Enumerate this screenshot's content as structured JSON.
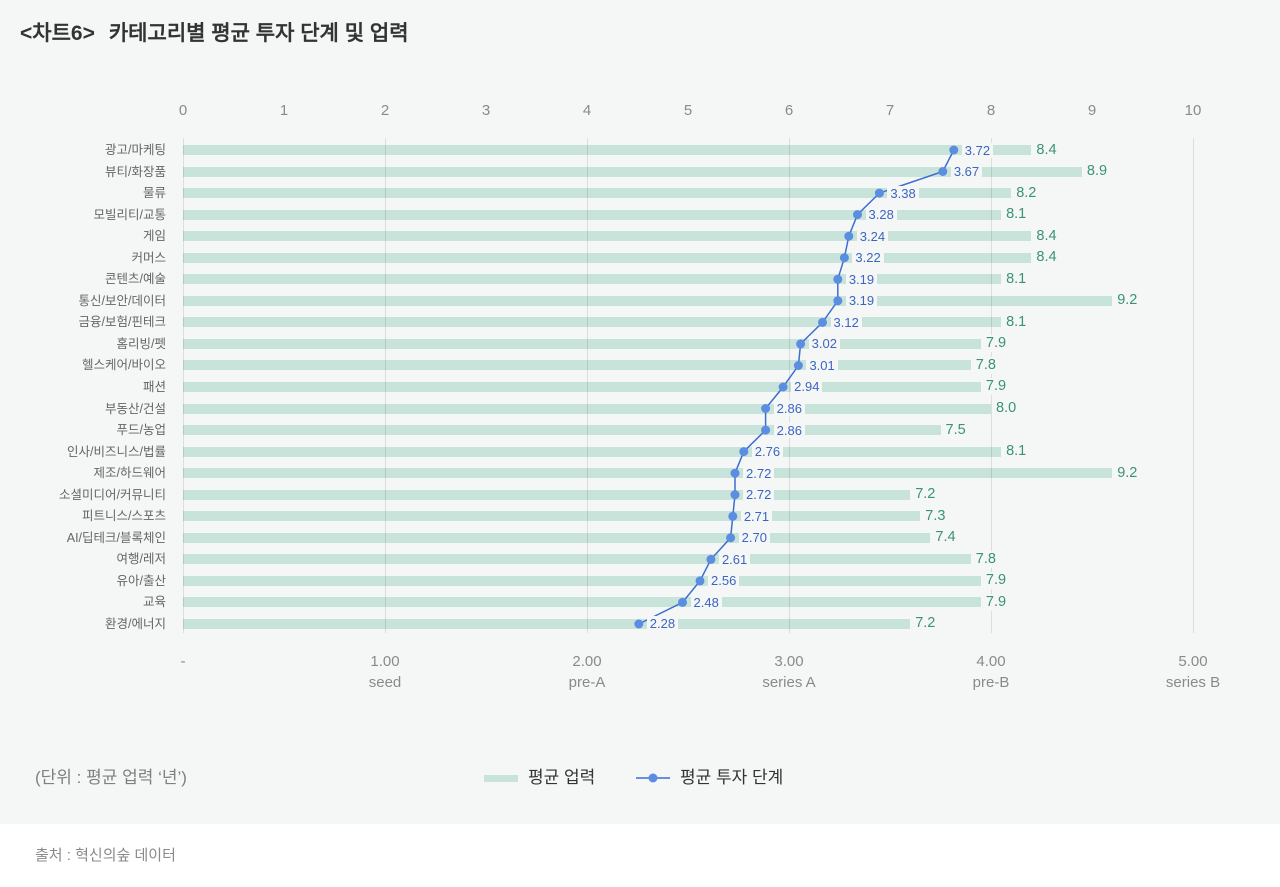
{
  "title": {
    "chart_no": "<차트6>",
    "text": "카테고리별 평균 투자 단계 및 업력"
  },
  "unit_note": "(단위 : 평균 업력 ‘년’)",
  "legend": [
    {
      "label": "평균 업력",
      "type": "bar",
      "color": "#c8e3da"
    },
    {
      "label": "평균 투자 단계",
      "type": "line",
      "color": "#5b8ee0"
    }
  ],
  "source": "출처 : 혁신의숲 데이터",
  "colors": {
    "bar": "#c8e3da",
    "line": "#3b6fd0",
    "dot": "#5b8ee0",
    "stage_label": "#3b66c0",
    "years_label": "#3a9473",
    "background": "#f5f6f6"
  },
  "chart_data": {
    "type": "bar",
    "orientation": "horizontal",
    "title": "카테고리별 평균 투자 단계 및 업력",
    "xlabel": "",
    "ylabel": "",
    "categories": [
      "광고/마케팅",
      "뷰티/화장품",
      "물류",
      "모빌리티/교통",
      "게임",
      "커머스",
      "콘텐츠/예술",
      "통신/보안/데이터",
      "금융/보험/핀테크",
      "홈리빙/펫",
      "헬스케어/바이오",
      "패션",
      "부동산/건설",
      "푸드/농업",
      "인사/비즈니스/법률",
      "제조/하드웨어",
      "소셜미디어/커뮤니티",
      "피트니스/스포츠",
      "AI/딥테크/블록체인",
      "여행/레저",
      "유아/출산",
      "교육",
      "환경/에너지"
    ],
    "series": [
      {
        "name": "평균 업력",
        "type": "bar",
        "axis": "top",
        "values": [
          8.4,
          8.9,
          8.2,
          8.1,
          8.4,
          8.4,
          8.1,
          9.2,
          8.1,
          7.9,
          7.8,
          7.9,
          8.0,
          7.5,
          8.1,
          9.2,
          7.2,
          7.3,
          7.4,
          7.8,
          7.9,
          7.9,
          7.2
        ],
        "value_labels": [
          "8.4",
          "8.9",
          "8.2",
          "8.1",
          "8.4",
          "8.4",
          "8.1",
          "9.2",
          "8.1",
          "7.9",
          "7.8",
          "7.9",
          "8.0",
          "7.5",
          "8.1",
          "9.2",
          "7.2",
          "7.3",
          "7.4",
          "7.8",
          "7.9",
          "7.9",
          "7.2"
        ]
      },
      {
        "name": "평균 투자 단계",
        "type": "line",
        "axis": "bottom",
        "values": [
          3.72,
          3.67,
          3.38,
          3.28,
          3.24,
          3.22,
          3.19,
          3.19,
          3.12,
          3.02,
          3.01,
          2.94,
          2.86,
          2.86,
          2.76,
          2.72,
          2.72,
          2.71,
          2.7,
          2.61,
          2.56,
          2.48,
          2.28
        ],
        "value_labels": [
          "3.72",
          "3.67",
          "3.38",
          "3.28",
          "3.24",
          "3.22",
          "3.19",
          "3.19",
          "3.12",
          "3.02",
          "3.01",
          "2.94",
          "2.86",
          "2.86",
          "2.76",
          "2.72",
          "2.72",
          "2.71",
          "2.70",
          "2.61",
          "2.56",
          "2.48",
          "2.28"
        ]
      }
    ],
    "top_axis": {
      "range": [
        0,
        10
      ],
      "ticks": [
        "0",
        "1",
        "2",
        "3",
        "4",
        "5",
        "6",
        "7",
        "8",
        "9",
        "10"
      ]
    },
    "bottom_axis": {
      "range": [
        0,
        5
      ],
      "ticks": [
        {
          "value": "-",
          "stage": ""
        },
        {
          "value": "1.00",
          "stage": "seed"
        },
        {
          "value": "2.00",
          "stage": "pre-A"
        },
        {
          "value": "3.00",
          "stage": "series A"
        },
        {
          "value": "4.00",
          "stage": "pre-B"
        },
        {
          "value": "5.00",
          "stage": "series B"
        }
      ]
    },
    "grid": true,
    "legend_position": "bottom"
  }
}
